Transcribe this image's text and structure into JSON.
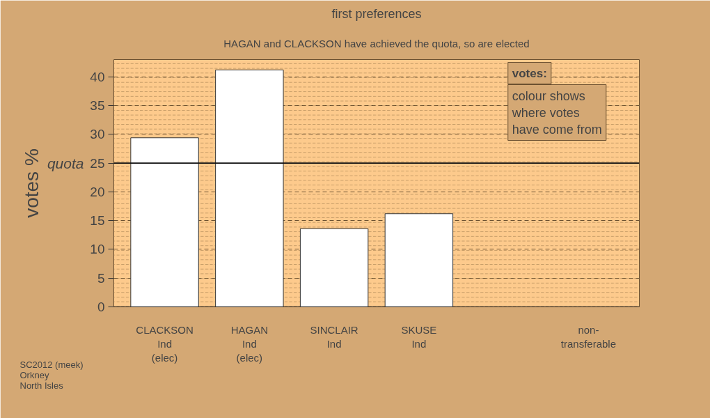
{
  "chart_data": {
    "type": "bar",
    "title": "first preferences",
    "subtitle": "HAGAN and CLACKSON have achieved the quota, so are elected",
    "ylabel": "votes %",
    "categories": [
      "CLACKSON\nInd\n(elec)",
      "HAGAN\nInd\n(elec)",
      "SINCLAIR\nInd",
      "SKUSE\nInd",
      null,
      "non-\ntransferable"
    ],
    "values": [
      29.4,
      41.2,
      13.6,
      16.2,
      null,
      null
    ],
    "color": "#ffffff",
    "ylim": [
      0,
      43
    ],
    "yticks": [
      0,
      5,
      10,
      15,
      20,
      25,
      30,
      35,
      40
    ],
    "grid": "y",
    "ref_lines": [
      {
        "axis": "y",
        "value": 25,
        "label": "quota"
      }
    ],
    "annotations": [
      "votes:",
      "colour shows\nwhere votes\nhave come from",
      "SC2012 (meek)\nOrkney\nNorth Isles"
    ]
  }
}
